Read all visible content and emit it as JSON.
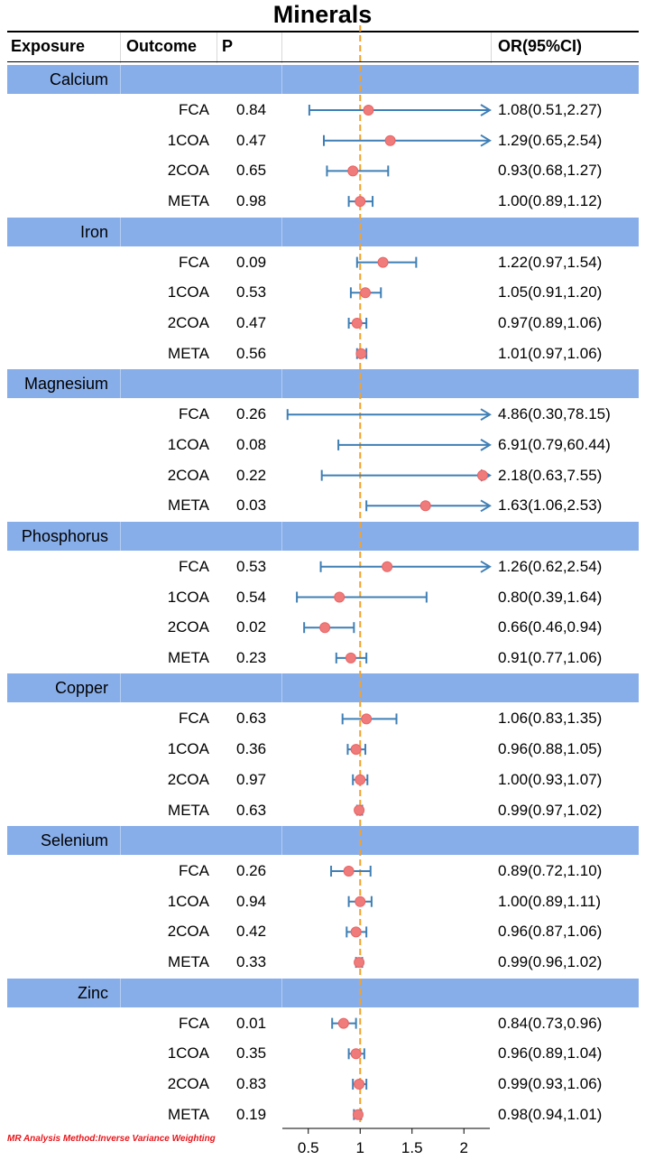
{
  "chart_data": {
    "type": "forest",
    "title": "Minerals",
    "columns": {
      "exposure": "Exposure",
      "outcome": "Outcome",
      "p": "P",
      "or": "OR(95%CI)"
    },
    "x_ticks": [
      "0.5",
      "1",
      "1.5",
      "2"
    ],
    "xlim": [
      0.25,
      2.25
    ],
    "reference_line": 1,
    "colors": {
      "band": "#88aeea",
      "ci_line": "#3f7fb5",
      "point": "#f07b7b",
      "reference": "#f2a12a",
      "note": "#e8161b"
    },
    "groups": [
      {
        "exposure": "Calcium",
        "rows": [
          {
            "outcome": "FCA",
            "p": "0.84",
            "or_text": "1.08(0.51,2.27)",
            "or": 1.08,
            "lo": 0.51,
            "hi": 2.27
          },
          {
            "outcome": "1COA",
            "p": "0.47",
            "or_text": "1.29(0.65,2.54)",
            "or": 1.29,
            "lo": 0.65,
            "hi": 2.54
          },
          {
            "outcome": "2COA",
            "p": "0.65",
            "or_text": "0.93(0.68,1.27)",
            "or": 0.93,
            "lo": 0.68,
            "hi": 1.27
          },
          {
            "outcome": "META",
            "p": "0.98",
            "or_text": "1.00(0.89,1.12)",
            "or": 1.0,
            "lo": 0.89,
            "hi": 1.12
          }
        ]
      },
      {
        "exposure": "Iron",
        "rows": [
          {
            "outcome": "FCA",
            "p": "0.09",
            "or_text": "1.22(0.97,1.54)",
            "or": 1.22,
            "lo": 0.97,
            "hi": 1.54
          },
          {
            "outcome": "1COA",
            "p": "0.53",
            "or_text": "1.05(0.91,1.20)",
            "or": 1.05,
            "lo": 0.91,
            "hi": 1.2
          },
          {
            "outcome": "2COA",
            "p": "0.47",
            "or_text": "0.97(0.89,1.06)",
            "or": 0.97,
            "lo": 0.89,
            "hi": 1.06
          },
          {
            "outcome": "META",
            "p": "0.56",
            "or_text": "1.01(0.97,1.06)",
            "or": 1.01,
            "lo": 0.97,
            "hi": 1.06
          }
        ]
      },
      {
        "exposure": "Magnesium",
        "rows": [
          {
            "outcome": "FCA",
            "p": "0.26",
            "or_text": "4.86(0.30,78.15)",
            "or": 4.86,
            "lo": 0.3,
            "hi": 78.15
          },
          {
            "outcome": "1COA",
            "p": "0.08",
            "or_text": "6.91(0.79,60.44)",
            "or": 6.91,
            "lo": 0.79,
            "hi": 60.44
          },
          {
            "outcome": "2COA",
            "p": "0.22",
            "or_text": "2.18(0.63,7.55)",
            "or": 2.18,
            "lo": 0.63,
            "hi": 7.55
          },
          {
            "outcome": "META",
            "p": "0.03",
            "or_text": "1.63(1.06,2.53)",
            "or": 1.63,
            "lo": 1.06,
            "hi": 2.53
          }
        ]
      },
      {
        "exposure": "Phosphorus",
        "rows": [
          {
            "outcome": "FCA",
            "p": "0.53",
            "or_text": "1.26(0.62,2.54)",
            "or": 1.26,
            "lo": 0.62,
            "hi": 2.54
          },
          {
            "outcome": "1COA",
            "p": "0.54",
            "or_text": "0.80(0.39,1.64)",
            "or": 0.8,
            "lo": 0.39,
            "hi": 1.64
          },
          {
            "outcome": "2COA",
            "p": "0.02",
            "or_text": "0.66(0.46,0.94)",
            "or": 0.66,
            "lo": 0.46,
            "hi": 0.94
          },
          {
            "outcome": "META",
            "p": "0.23",
            "or_text": "0.91(0.77,1.06)",
            "or": 0.91,
            "lo": 0.77,
            "hi": 1.06
          }
        ]
      },
      {
        "exposure": "Copper",
        "rows": [
          {
            "outcome": "FCA",
            "p": "0.63",
            "or_text": "1.06(0.83,1.35)",
            "or": 1.06,
            "lo": 0.83,
            "hi": 1.35
          },
          {
            "outcome": "1COA",
            "p": "0.36",
            "or_text": "0.96(0.88,1.05)",
            "or": 0.96,
            "lo": 0.88,
            "hi": 1.05
          },
          {
            "outcome": "2COA",
            "p": "0.97",
            "or_text": "1.00(0.93,1.07)",
            "or": 1.0,
            "lo": 0.93,
            "hi": 1.07
          },
          {
            "outcome": "META",
            "p": "0.63",
            "or_text": "0.99(0.97,1.02)",
            "or": 0.99,
            "lo": 0.97,
            "hi": 1.02
          }
        ]
      },
      {
        "exposure": "Selenium",
        "rows": [
          {
            "outcome": "FCA",
            "p": "0.26",
            "or_text": "0.89(0.72,1.10)",
            "or": 0.89,
            "lo": 0.72,
            "hi": 1.1
          },
          {
            "outcome": "1COA",
            "p": "0.94",
            "or_text": "1.00(0.89,1.11)",
            "or": 1.0,
            "lo": 0.89,
            "hi": 1.11
          },
          {
            "outcome": "2COA",
            "p": "0.42",
            "or_text": "0.96(0.87,1.06)",
            "or": 0.96,
            "lo": 0.87,
            "hi": 1.06
          },
          {
            "outcome": "META",
            "p": "0.33",
            "or_text": "0.99(0.96,1.02)",
            "or": 0.99,
            "lo": 0.96,
            "hi": 1.02
          }
        ]
      },
      {
        "exposure": "Zinc",
        "rows": [
          {
            "outcome": "FCA",
            "p": "0.01",
            "or_text": "0.84(0.73,0.96)",
            "or": 0.84,
            "lo": 0.73,
            "hi": 0.96
          },
          {
            "outcome": "1COA",
            "p": "0.35",
            "or_text": "0.96(0.89,1.04)",
            "or": 0.96,
            "lo": 0.89,
            "hi": 1.04
          },
          {
            "outcome": "2COA",
            "p": "0.83",
            "or_text": "0.99(0.93,1.06)",
            "or": 0.99,
            "lo": 0.93,
            "hi": 1.06
          },
          {
            "outcome": "META",
            "p": "0.19",
            "or_text": "0.98(0.94,1.01)",
            "or": 0.98,
            "lo": 0.94,
            "hi": 1.01
          }
        ]
      }
    ],
    "note": "MR Analysis Method:Inverse Variance Weighting"
  }
}
